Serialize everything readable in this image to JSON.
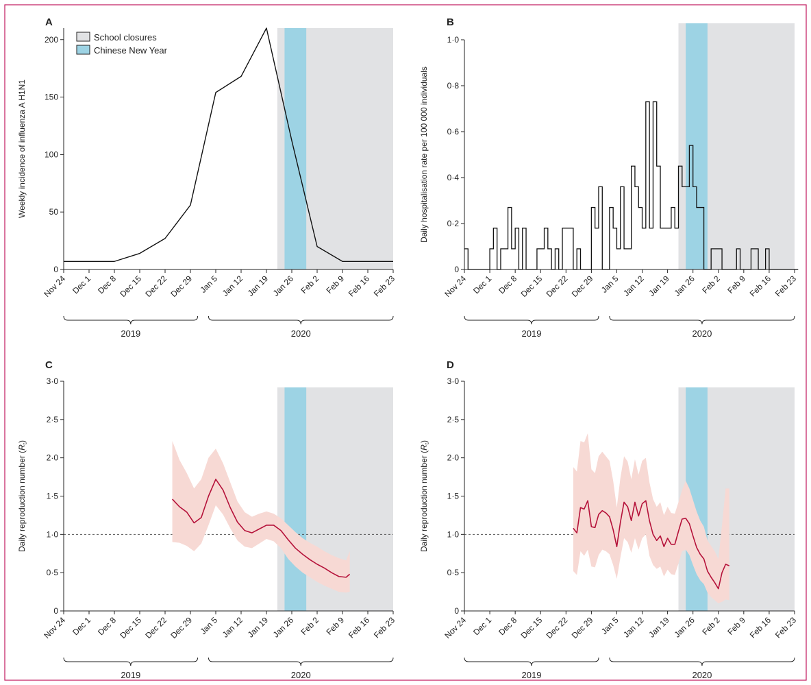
{
  "figure": {
    "frame_color": "#c0185e"
  },
  "legend": {
    "school_closures": "School closures",
    "chinese_new_year": "Chinese New Year"
  },
  "colors": {
    "school": "#e1e2e4",
    "cny": "#9dd3e4",
    "line_black": "#111111",
    "rt_line": "#b5123a",
    "rt_band": "#f7d9d4",
    "reference": "#555555"
  },
  "dates": [
    "Nov 24",
    "Dec 1",
    "Dec 8",
    "Dec 15",
    "Dec 22",
    "Dec 29",
    "Jan 5",
    "Jan 12",
    "Jan 19",
    "Jan 26",
    "Feb 2",
    "Feb 9",
    "Feb 16",
    "Feb 23"
  ],
  "years": [
    {
      "label": "2019",
      "start": "2019-11-24",
      "end": "2019-12-31"
    },
    {
      "label": "2020",
      "start": "2020-01-03",
      "end": "2020-02-23"
    }
  ],
  "school_closures": {
    "start": "2020-01-22",
    "end": "2020-02-23"
  },
  "chinese_new_year": {
    "start": "2020-01-24",
    "end": "2020-01-30"
  },
  "chart_data": [
    {
      "panel": "A",
      "type": "line",
      "ylabel": "Weekly incidence of influenza A H1N1",
      "ylim": [
        0,
        210
      ],
      "yticks": [
        0,
        50,
        100,
        150,
        200
      ],
      "ytick_labels": [
        "0",
        "50",
        "100",
        "150",
        "200"
      ],
      "xlim": [
        "2019-11-24",
        "2020-02-23"
      ],
      "series": [
        {
          "x": [
            "2019-11-24",
            "2019-12-01",
            "2019-12-08",
            "2019-12-15",
            "2019-12-22",
            "2019-12-29",
            "2020-01-05",
            "2020-01-12",
            "2020-01-19",
            "2020-01-26",
            "2020-02-02",
            "2020-02-09",
            "2020-02-16",
            "2020-02-23"
          ],
          "y": [
            7,
            7,
            7,
            14,
            27,
            56,
            154,
            168,
            210,
            112,
            20,
            7,
            7,
            7
          ]
        }
      ]
    },
    {
      "panel": "B",
      "type": "step",
      "ylabel": "Daily hospitalisation rate per 100 000 individuals",
      "ylim": [
        0,
        1.0
      ],
      "yticks": [
        0,
        0.2,
        0.4,
        0.6,
        0.8,
        1.0
      ],
      "ytick_labels": [
        "0",
        "0·2",
        "0·4",
        "0·6",
        "0·8",
        "1·0"
      ],
      "xlim": [
        "2019-11-24",
        "2020-02-23"
      ],
      "start": "2019-11-24",
      "values": [
        0.09,
        0,
        0,
        0,
        0,
        0,
        0,
        0.09,
        0.18,
        0,
        0.09,
        0.09,
        0.27,
        0.09,
        0.18,
        0,
        0.18,
        0,
        0,
        0,
        0.09,
        0.09,
        0.18,
        0.09,
        0,
        0.09,
        0,
        0.18,
        0.18,
        0.18,
        0,
        0.09,
        0,
        0,
        0,
        0.27,
        0.18,
        0.36,
        0,
        0,
        0.27,
        0.18,
        0.09,
        0.36,
        0.09,
        0.09,
        0.45,
        0.36,
        0.27,
        0.18,
        0.73,
        0.18,
        0.73,
        0.45,
        0.18,
        0.18,
        0.18,
        0.27,
        0.18,
        0.45,
        0.36,
        0.36,
        0.54,
        0.36,
        0.27,
        0.27,
        0,
        0,
        0.09,
        0.09,
        0.09,
        0,
        0,
        0,
        0,
        0.09,
        0,
        0,
        0,
        0.09,
        0.09,
        0,
        0,
        0.09,
        0,
        0,
        0,
        0,
        0,
        0,
        0,
        0
      ],
      "series": []
    },
    {
      "panel": "C",
      "type": "line",
      "ylabel_main": "Daily reproduction number (",
      "ylabel_sym": "R",
      "ylabel_sub": "t",
      "ylabel_end": ")",
      "ylim": [
        0,
        3.0
      ],
      "yticks": [
        0,
        0.5,
        1.0,
        1.5,
        2.0,
        2.5,
        3.0
      ],
      "ytick_labels": [
        "0",
        "0·5",
        "1·0",
        "1·5",
        "2·0",
        "2·5",
        "3·0"
      ],
      "reference_line": 1.0,
      "xlim": [
        "2019-11-24",
        "2020-02-23"
      ],
      "series": [
        {
          "x": [
            "2019-12-24",
            "2019-12-26",
            "2019-12-28",
            "2019-12-30",
            "2020-01-01",
            "2020-01-03",
            "2020-01-05",
            "2020-01-07",
            "2020-01-09",
            "2020-01-11",
            "2020-01-13",
            "2020-01-15",
            "2020-01-17",
            "2020-01-19",
            "2020-01-21",
            "2020-01-23",
            "2020-01-25",
            "2020-01-27",
            "2020-01-29",
            "2020-01-31",
            "2020-02-02",
            "2020-02-04",
            "2020-02-06",
            "2020-02-08",
            "2020-02-10",
            "2020-02-11"
          ],
          "y": [
            1.46,
            1.36,
            1.29,
            1.15,
            1.22,
            1.5,
            1.72,
            1.58,
            1.35,
            1.16,
            1.05,
            1.02,
            1.07,
            1.12,
            1.12,
            1.05,
            0.93,
            0.82,
            0.74,
            0.67,
            0.61,
            0.56,
            0.5,
            0.45,
            0.44,
            0.48
          ],
          "lower": [
            0.9,
            0.89,
            0.85,
            0.78,
            0.88,
            1.12,
            1.38,
            1.26,
            1.08,
            0.92,
            0.84,
            0.82,
            0.88,
            0.94,
            0.91,
            0.82,
            0.68,
            0.58,
            0.5,
            0.44,
            0.38,
            0.33,
            0.29,
            0.25,
            0.24,
            0.25
          ],
          "upper": [
            2.22,
            1.97,
            1.8,
            1.6,
            1.72,
            2.0,
            2.12,
            1.93,
            1.68,
            1.43,
            1.29,
            1.23,
            1.27,
            1.3,
            1.27,
            1.21,
            1.12,
            1.03,
            0.95,
            0.89,
            0.84,
            0.78,
            0.73,
            0.69,
            0.66,
            0.78
          ]
        }
      ]
    },
    {
      "panel": "D",
      "type": "line",
      "ylabel_main": "Daily reproduction number (",
      "ylabel_sym": "R",
      "ylabel_sub": "t",
      "ylabel_end": ")",
      "ylim": [
        0,
        3.0
      ],
      "yticks": [
        0,
        0.5,
        1.0,
        1.5,
        2.0,
        2.5,
        3.0
      ],
      "ytick_labels": [
        "0",
        "0·5",
        "1·0",
        "1·5",
        "2·0",
        "2·5",
        "3·0"
      ],
      "reference_line": 1.0,
      "xlim": [
        "2019-11-24",
        "2020-02-23"
      ],
      "series": [
        {
          "x": [
            "2019-12-24",
            "2019-12-25",
            "2019-12-26",
            "2019-12-27",
            "2019-12-28",
            "2019-12-29",
            "2019-12-30",
            "2019-12-31",
            "2020-01-01",
            "2020-01-02",
            "2020-01-03",
            "2020-01-04",
            "2020-01-05",
            "2020-01-06",
            "2020-01-07",
            "2020-01-08",
            "2020-01-09",
            "2020-01-10",
            "2020-01-11",
            "2020-01-12",
            "2020-01-13",
            "2020-01-14",
            "2020-01-15",
            "2020-01-16",
            "2020-01-17",
            "2020-01-18",
            "2020-01-19",
            "2020-01-20",
            "2020-01-21",
            "2020-01-22",
            "2020-01-23",
            "2020-01-24",
            "2020-01-25",
            "2020-01-26",
            "2020-01-27",
            "2020-01-28",
            "2020-01-29",
            "2020-01-30",
            "2020-01-31",
            "2020-02-01",
            "2020-02-02",
            "2020-02-03",
            "2020-02-04",
            "2020-02-05"
          ],
          "y": [
            1.08,
            1.02,
            1.35,
            1.33,
            1.44,
            1.1,
            1.09,
            1.26,
            1.31,
            1.28,
            1.23,
            1.06,
            0.84,
            1.16,
            1.42,
            1.36,
            1.18,
            1.42,
            1.24,
            1.4,
            1.44,
            1.18,
            1.0,
            0.92,
            0.98,
            0.84,
            0.95,
            0.87,
            0.87,
            1.04,
            1.2,
            1.21,
            1.14,
            0.98,
            0.83,
            0.74,
            0.68,
            0.52,
            0.44,
            0.37,
            0.29,
            0.5,
            0.61,
            0.59
          ],
          "lower": [
            0.52,
            0.47,
            0.78,
            0.72,
            0.8,
            0.58,
            0.57,
            0.73,
            0.8,
            0.78,
            0.74,
            0.6,
            0.42,
            0.7,
            0.95,
            0.9,
            0.76,
            0.95,
            0.8,
            0.95,
            1.0,
            0.72,
            0.6,
            0.55,
            0.58,
            0.45,
            0.54,
            0.48,
            0.47,
            0.62,
            0.78,
            0.8,
            0.73,
            0.6,
            0.48,
            0.4,
            0.35,
            0.24,
            0.18,
            0.14,
            0.1,
            0.12,
            0.15,
            0.14
          ],
          "upper": [
            1.88,
            1.82,
            2.22,
            2.2,
            2.32,
            1.85,
            1.8,
            2.02,
            2.08,
            2.02,
            1.96,
            1.7,
            1.35,
            1.74,
            2.02,
            1.95,
            1.72,
            1.98,
            1.78,
            1.96,
            2.0,
            1.68,
            1.46,
            1.36,
            1.42,
            1.25,
            1.36,
            1.28,
            1.27,
            1.42,
            1.58,
            1.7,
            1.6,
            1.45,
            1.3,
            1.18,
            1.1,
            0.92,
            0.85,
            0.78,
            0.68,
            1.12,
            1.6,
            1.6
          ]
        }
      ]
    }
  ]
}
